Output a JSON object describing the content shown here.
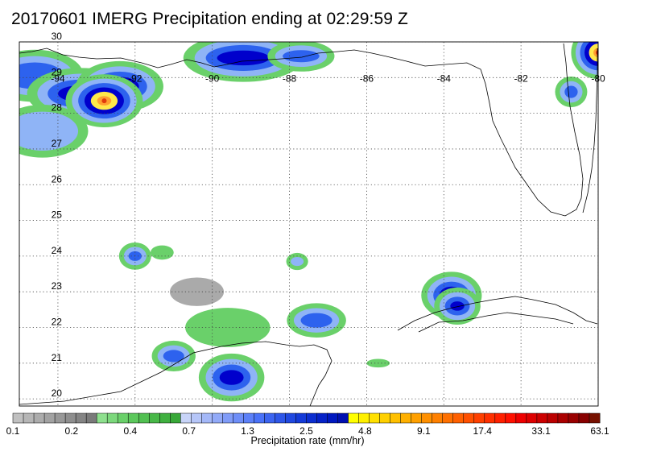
{
  "title": "20170601 IMERG Precipitation ending at 02:29:59 Z",
  "map": {
    "lon_labels": [
      "-94",
      "-92",
      "-90",
      "-88",
      "-86",
      "-84",
      "-82",
      "-80"
    ],
    "lon_values": [
      -94,
      -92,
      -90,
      -88,
      -86,
      -84,
      -82,
      -80
    ],
    "lat_labels": [
      "30",
      "29",
      "28",
      "27",
      "26",
      "25",
      "24",
      "23",
      "22",
      "21",
      "20"
    ],
    "lat_values": [
      30,
      29,
      28,
      27,
      26,
      25,
      24,
      23,
      22,
      21,
      20
    ],
    "lon_range": [
      -95,
      -80
    ],
    "lat_range": [
      19.8,
      30
    ],
    "gridlines": "dotted",
    "coastline_color": "#000000"
  },
  "colorbar": {
    "title": "Precipitation rate (mm/hr)",
    "tick_labels": [
      "0.1",
      "0.2",
      "0.4",
      "0.7",
      "1.3",
      "2.5",
      "4.8",
      "9.1",
      "17.4",
      "33.1",
      "63.1"
    ],
    "colors": [
      "#c0c0c0",
      "#b6b6b6",
      "#acacac",
      "#a2a2a2",
      "#989898",
      "#8e8e8e",
      "#848484",
      "#7a7a7a",
      "#8ee08e",
      "#7cd87c",
      "#6ad06a",
      "#5cc85c",
      "#52c052",
      "#48b848",
      "#40b040",
      "#38a838",
      "#c8d4f8",
      "#b6c6f8",
      "#a4b8f8",
      "#92aaf8",
      "#809cf8",
      "#6e8ef8",
      "#5c80f8",
      "#4a72f8",
      "#3c64f0",
      "#2e56e8",
      "#2048e0",
      "#143ad8",
      "#0c2ed0",
      "#0622c8",
      "#0018c0",
      "#0010b0",
      "#ffff00",
      "#fff000",
      "#ffe000",
      "#ffd000",
      "#ffc000",
      "#ffb000",
      "#ffa000",
      "#ff9000",
      "#ff8000",
      "#ff7000",
      "#ff6000",
      "#ff5000",
      "#ff4000",
      "#ff3000",
      "#ff2000",
      "#ff1000",
      "#ee0000",
      "#dd0000",
      "#cc0000",
      "#bb0000",
      "#aa0000",
      "#990000",
      "#880000",
      "#771100"
    ]
  },
  "palette": {
    "light": "#aaaaaa",
    "green": "#6ad06a",
    "lightblue": "#8fb4f6",
    "blue": "#2d62ee",
    "darkblue": "#0000cc",
    "yellow": "#ffe84a",
    "orange": "#ffa030",
    "red": "#e03a0c"
  },
  "precip_cells": [
    {
      "lon": -94.6,
      "lat": 29.05,
      "rx": 1.1,
      "ry": 0.55,
      "level": "blue"
    },
    {
      "lon": -93.4,
      "lat": 28.55,
      "rx": 1.15,
      "ry": 0.45,
      "level": "darkblue"
    },
    {
      "lon": -92.4,
      "lat": 28.75,
      "rx": 0.8,
      "ry": 0.35,
      "level": "yellow"
    },
    {
      "lon": -92.8,
      "lat": 28.35,
      "rx": 0.5,
      "ry": 0.2,
      "level": "red"
    },
    {
      "lon": -94.4,
      "lat": 27.5,
      "rx": 1.1,
      "ry": 0.65,
      "level": "lightblue"
    },
    {
      "lon": -89.2,
      "lat": 29.55,
      "rx": 1.3,
      "ry": 0.4,
      "level": "darkblue"
    },
    {
      "lon": -87.7,
      "lat": 29.6,
      "rx": 0.7,
      "ry": 0.25,
      "level": "blue"
    },
    {
      "lon": -89.6,
      "lat": 22.0,
      "rx": 1.1,
      "ry": 0.55,
      "level": "green"
    },
    {
      "lon": -89.5,
      "lat": 20.6,
      "rx": 0.6,
      "ry": 0.4,
      "level": "darkblue"
    },
    {
      "lon": -91.0,
      "lat": 21.2,
      "rx": 0.4,
      "ry": 0.25,
      "level": "blue"
    },
    {
      "lon": -83.8,
      "lat": 22.9,
      "rx": 0.45,
      "ry": 0.3,
      "level": "yellow"
    },
    {
      "lon": -83.65,
      "lat": 22.6,
      "rx": 0.35,
      "ry": 0.25,
      "level": "darkblue"
    },
    {
      "lon": -87.3,
      "lat": 22.2,
      "rx": 0.6,
      "ry": 0.3,
      "level": "blue"
    },
    {
      "lon": -80.0,
      "lat": 29.7,
      "rx": 0.2,
      "ry": 0.2,
      "level": "red"
    },
    {
      "lon": -80.7,
      "lat": 28.6,
      "rx": 0.25,
      "ry": 0.25,
      "level": "blue"
    },
    {
      "lon": -90.4,
      "lat": 23.0,
      "rx": 0.7,
      "ry": 0.4,
      "level": "light"
    },
    {
      "lon": -92.0,
      "lat": 24.0,
      "rx": 0.25,
      "ry": 0.2,
      "level": "blue"
    },
    {
      "lon": -91.3,
      "lat": 24.1,
      "rx": 0.3,
      "ry": 0.2,
      "level": "green"
    },
    {
      "lon": -87.8,
      "lat": 23.85,
      "rx": 0.2,
      "ry": 0.15,
      "level": "lightblue"
    },
    {
      "lon": -85.7,
      "lat": 21.0,
      "rx": 0.3,
      "ry": 0.12,
      "level": "green"
    }
  ]
}
